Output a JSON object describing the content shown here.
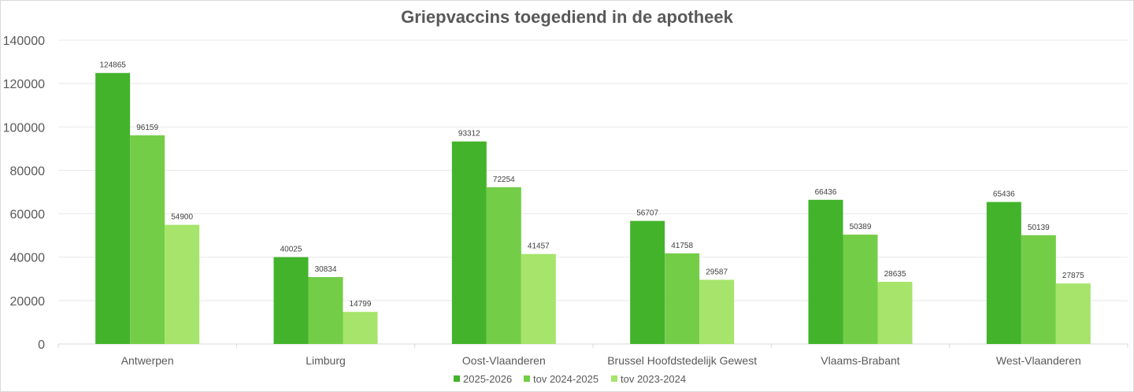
{
  "chart_data": {
    "type": "bar",
    "title": "Griepvaccins toegediend in de apotheek",
    "xlabel": "",
    "ylabel": "",
    "ylim": [
      0,
      140000
    ],
    "yticks": [
      "0",
      "20000",
      "40000",
      "60000",
      "80000",
      "100000",
      "120000",
      "140000"
    ],
    "grid": true,
    "legend_position": "bottom",
    "data_labels": true,
    "categories": [
      "Antwerpen",
      "Limburg",
      "Oost-Vlaanderen",
      "Brussel Hoofdstedelijk Gewest",
      "Vlaams-Brabant",
      "West-Vlaanderen"
    ],
    "series": [
      {
        "name": "2025-2026",
        "color": "#43b32c",
        "values": [
          124865,
          40025,
          93312,
          56707,
          66436,
          65436
        ]
      },
      {
        "name": "tov 2024-2025",
        "color": "#74cd47",
        "values": [
          96159,
          30834,
          72254,
          41758,
          50389,
          50139
        ]
      },
      {
        "name": "tov 2023-2024",
        "color": "#a6e46b",
        "values": [
          54900,
          14799,
          41457,
          29587,
          28635,
          27875
        ]
      }
    ]
  }
}
